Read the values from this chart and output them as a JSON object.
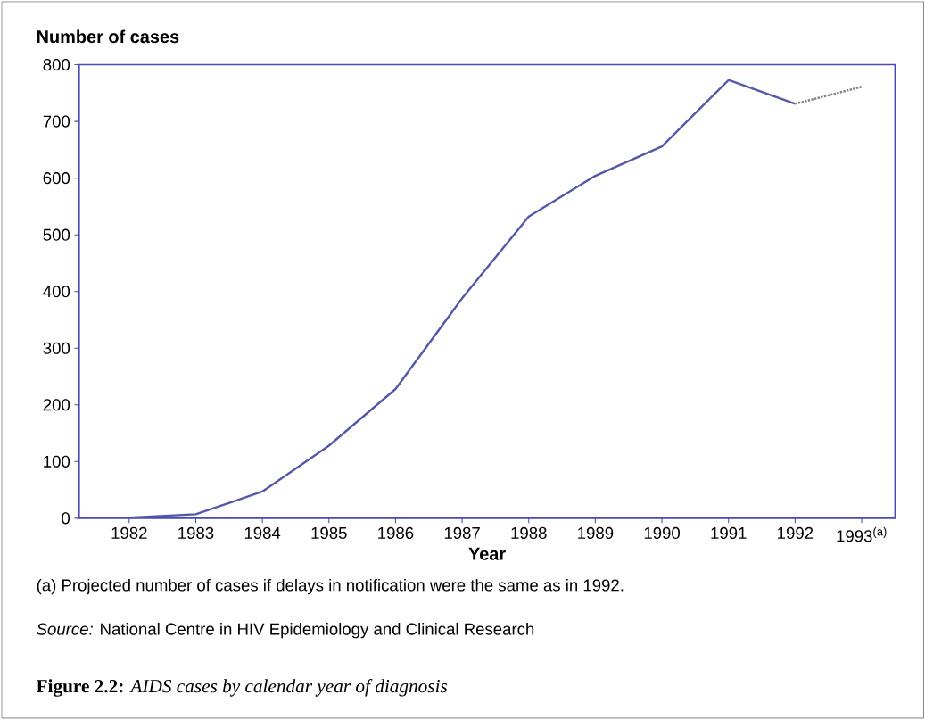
{
  "chart_data": {
    "type": "line",
    "title": "**Figure 2.2:** *AIDS cases by calendar year of diagnosis*",
    "xlabel": "Year",
    "ylabel": "Number of cases",
    "categories": [
      "1982",
      "1983",
      "1984",
      "1985",
      "1986",
      "1987",
      "1988",
      "1989",
      "1990",
      "1991",
      "1992",
      "1993$^{(a)}$"
    ],
    "series": [
      {
        "color": "#5558a8",
        "line_style": "solid",
        "values": [
          1,
          7,
          47,
          128,
          228,
          388,
          532,
          604,
          656,
          773,
          731,
          null
        ]
      },
      {
        "color": "#808080",
        "line_style": "dotted",
        "values": [
          null,
          null,
          null,
          null,
          null,
          null,
          null,
          null,
          null,
          null,
          731,
          761
        ]
      }
    ],
    "ylim": [
      0,
      800
    ],
    "yticks": [
      0,
      100,
      200,
      300,
      400,
      500,
      600,
      700,
      800
    ],
    "annotations": [
      "(a) Projected number of cases if delays in notification were the same as in 1992.",
      "*Source:*    National Centre in HIV Epidemiology and Clinical Research"
    ]
  }
}
